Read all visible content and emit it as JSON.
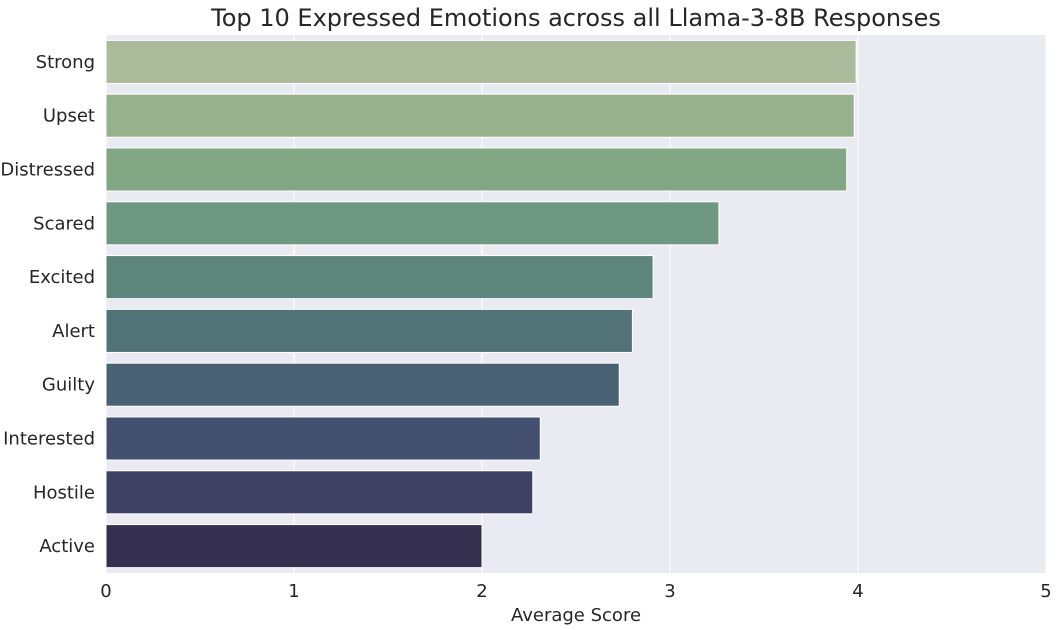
{
  "chart_data": {
    "type": "bar",
    "orientation": "horizontal",
    "title": "Top 10 Expressed Emotions across all Llama-3-8B Responses",
    "xlabel": "Average Score",
    "ylabel": "",
    "xlim": [
      0,
      5
    ],
    "xticks": [
      "0",
      "1",
      "2",
      "3",
      "4",
      "5"
    ],
    "grid": true,
    "legend": "none",
    "categories": [
      "Strong",
      "Upset",
      "Distressed",
      "Scared",
      "Excited",
      "Alert",
      "Guilty",
      "Interested",
      "Hostile",
      "Active"
    ],
    "values": [
      3.99,
      3.98,
      3.94,
      3.26,
      2.91,
      2.8,
      2.73,
      2.31,
      2.27,
      2.0
    ],
    "colors": [
      "#abba9a",
      "#97b18d",
      "#82a785",
      "#6e9881",
      "#5e857b",
      "#517276",
      "#4a6073",
      "#43506e",
      "#3e4163",
      "#363050"
    ],
    "background_color": "#eaeaf2",
    "grid_color": "#ffffff"
  }
}
